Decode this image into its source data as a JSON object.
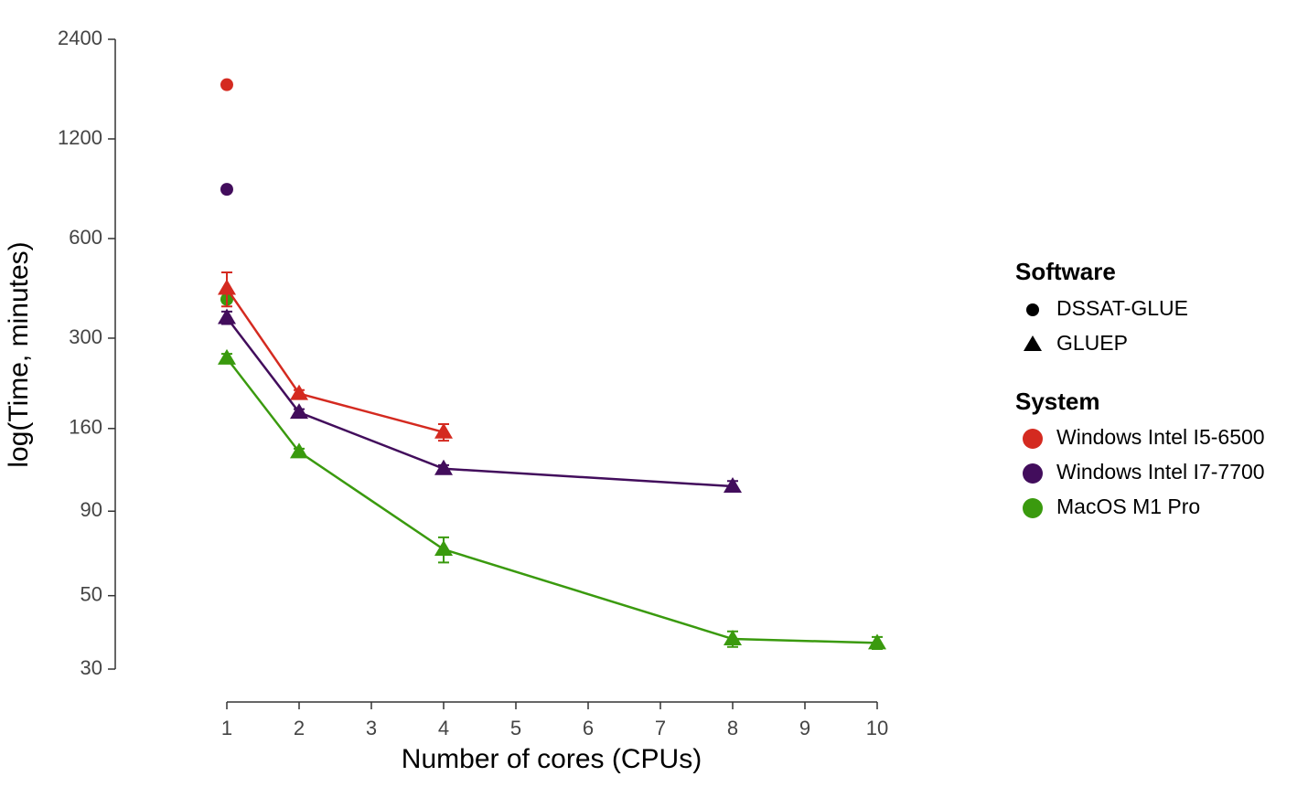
{
  "chart_data": {
    "type": "line",
    "ylabel": "log(Time, minutes)",
    "xlabel": "Number of cores (CPUs)",
    "log_y": true,
    "ylim": [
      30,
      2400
    ],
    "yticks": [
      30,
      50,
      90,
      160,
      300,
      600,
      1200,
      2400
    ],
    "xlim": [
      1,
      10
    ],
    "xticks": [
      1,
      2,
      3,
      4,
      5,
      6,
      7,
      8,
      9,
      10
    ],
    "software_title": "Software",
    "software": [
      {
        "name": "DSSAT-GLUE",
        "marker": "circle"
      },
      {
        "name": "GLUEP",
        "marker": "triangle"
      }
    ],
    "system_title": "System",
    "systems": [
      {
        "name": "Windows Intel I5-6500",
        "color": "#d42a20"
      },
      {
        "name": "Windows Intel I7-7700",
        "color": "#420d5c"
      },
      {
        "name": "MacOS M1 Pro",
        "color": "#3a9a0e"
      }
    ],
    "series": [
      {
        "system": 0,
        "software": 0,
        "x": [
          1
        ],
        "values": [
          1750
        ]
      },
      {
        "system": 1,
        "software": 0,
        "x": [
          1
        ],
        "values": [
          845
        ]
      },
      {
        "system": 2,
        "software": 0,
        "x": [
          1
        ],
        "values": [
          393
        ]
      },
      {
        "system": 0,
        "software": 1,
        "x": [
          1,
          2,
          4
        ],
        "values": [
          424,
          204,
          156
        ],
        "errors": [
          50,
          5,
          9
        ]
      },
      {
        "system": 1,
        "software": 1,
        "x": [
          1,
          2,
          4,
          8
        ],
        "values": [
          346,
          179,
          121,
          107
        ],
        "errors": [
          15,
          4,
          3,
          4
        ]
      },
      {
        "system": 2,
        "software": 1,
        "x": [
          1,
          2,
          4,
          8,
          10
        ],
        "values": [
          261,
          136,
          69,
          37,
          36
        ],
        "errors": [
          8,
          3,
          6,
          2,
          1.5
        ]
      }
    ]
  }
}
